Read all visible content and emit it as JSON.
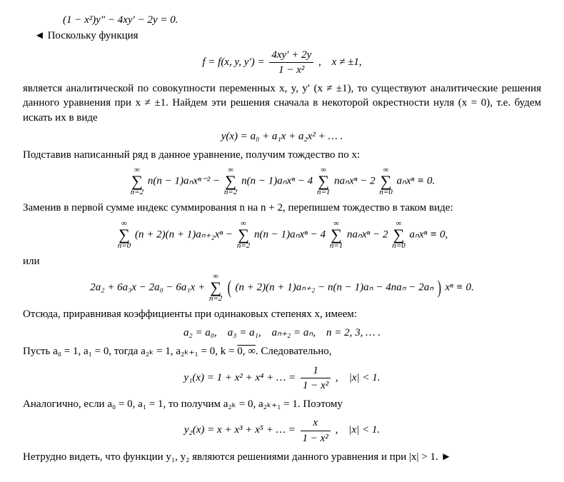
{
  "eq_ode": "(1 − x²)y″ − 4xy′ − 2y = 0.",
  "p1_lead": "◄ Поскольку функция",
  "eq_f_lhs": "f = f(x, y, y′) =",
  "eq_f_num": "4xy′ + 2y",
  "eq_f_den": "1 − x²",
  "eq_f_cond": ", x ≠ ±1,",
  "p2": "является аналитической по совокупности переменных x, y, y′ (x ≠ ±1), то существуют аналитические решения данного уравнения при x ≠ ±1. Найдем эти решения сначала в некоторой окрестности нуля (x = 0), т.е. будем искать их в виде",
  "eq_series_y": "y(x) = a₀ + a₁x + a₂x² + … .",
  "p3": "Подставив написанный ряд в данное уравнение, получим тождество по x:",
  "sum_ub_inf": "∞",
  "sum_lb_n2": "n=2",
  "sum_lb_n1": "n=1",
  "sum_lb_n0": "n=0",
  "t1a": "n(n − 1)aₙxⁿ⁻² −",
  "t1b": "n(n − 1)aₙxⁿ − 4",
  "t1c": "naₙxⁿ − 2",
  "t1d": "aₙxⁿ ≡ 0.",
  "p4": "Заменив в первой сумме индекс суммирования n на n + 2, перепишем тождество в таком виде:",
  "t2a": "(n + 2)(n + 1)aₙ₊₂xⁿ −",
  "t2b": "n(n − 1)aₙxⁿ − 4",
  "t2c": "naₙxⁿ − 2",
  "t2d": "aₙxⁿ ≡ 0,",
  "ili": "или",
  "t3_lead": "2a₂ + 6a₃x − 2a₀ − 6a₁x +",
  "t3_body": "(n + 2)(n + 1)aₙ₊₂ − n(n − 1)aₙ − 4naₙ − 2aₙ",
  "t3_tail": "xⁿ ≡ 0.",
  "p5": "Отсюда, приравнивая коэффициенты при одинаковых степенях x, имеем:",
  "eq_rec": "a₂ = a₀, a₃ = a₁, aₙ₊₂ = aₙ, n = 2, 3, … .",
  "p6a": "Пусть a₀ = 1, a₁ = 0, тогда a₂ₖ = 1, a₂ₖ₊₁ = 0, k = ",
  "p6b": "0, ∞",
  "p6c": ". Следовательно,",
  "y1_lhs": "y₁(x) = 1 + x² + x⁴ + … =",
  "y1_num": "1",
  "y1_den": "1 − x²",
  "y1_cond": ", |x| < 1.",
  "p7": "Аналогично, если a₀ = 0, a₁ = 1, то получим a₂ₖ = 0, a₂ₖ₊₁ = 1. Поэтому",
  "y2_lhs": "y₂(x) = x + x³ + x⁵ + … =",
  "y2_num": "x",
  "y2_den": "1 − x²",
  "y2_cond": ", |x| < 1.",
  "p8": "Нетрудно видеть, что функции y₁, y₂ являются решениями данного уравнения и при |x| > 1. ►"
}
